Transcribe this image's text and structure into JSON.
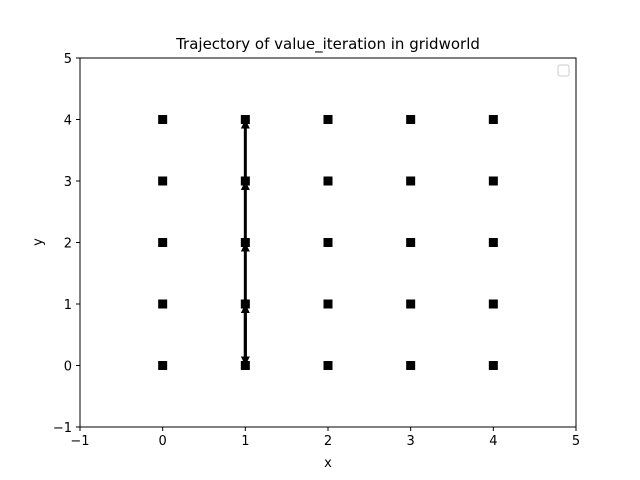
{
  "chart_data": {
    "type": "scatter",
    "title": "Trajectory of value_iteration in gridworld",
    "xlabel": "x",
    "ylabel": "y",
    "xlim": [
      -1,
      5
    ],
    "ylim": [
      -1,
      5
    ],
    "xticks": [
      -1,
      0,
      1,
      2,
      3,
      4,
      5
    ],
    "yticks": [
      -1,
      0,
      1,
      2,
      3,
      4,
      5
    ],
    "xtick_labels": [
      "−1",
      "0",
      "1",
      "2",
      "3",
      "4",
      "5"
    ],
    "ytick_labels": [
      "−1",
      "0",
      "1",
      "2",
      "3",
      "4",
      "5"
    ],
    "grid": false,
    "legend": {
      "position": "top-right",
      "entries": []
    },
    "colors": {
      "marker": "#000000",
      "arrow": "#000000",
      "axes": "#000000"
    },
    "marker": "square",
    "points": [
      [
        0,
        0
      ],
      [
        0,
        1
      ],
      [
        0,
        2
      ],
      [
        0,
        3
      ],
      [
        0,
        4
      ],
      [
        1,
        0
      ],
      [
        1,
        1
      ],
      [
        1,
        2
      ],
      [
        1,
        3
      ],
      [
        1,
        4
      ],
      [
        2,
        0
      ],
      [
        2,
        1
      ],
      [
        2,
        2
      ],
      [
        2,
        3
      ],
      [
        2,
        4
      ],
      [
        3,
        0
      ],
      [
        3,
        1
      ],
      [
        3,
        2
      ],
      [
        3,
        3
      ],
      [
        3,
        4
      ],
      [
        4,
        0
      ],
      [
        4,
        1
      ],
      [
        4,
        2
      ],
      [
        4,
        3
      ],
      [
        4,
        4
      ]
    ],
    "trajectory_arrows": [
      {
        "from": [
          1,
          1
        ],
        "to": [
          1,
          0
        ]
      },
      {
        "from": [
          1,
          0
        ],
        "to": [
          1,
          1
        ]
      },
      {
        "from": [
          1,
          1
        ],
        "to": [
          1,
          2
        ]
      },
      {
        "from": [
          1,
          2
        ],
        "to": [
          1,
          3
        ]
      },
      {
        "from": [
          1,
          3
        ],
        "to": [
          1,
          4
        ]
      }
    ]
  }
}
